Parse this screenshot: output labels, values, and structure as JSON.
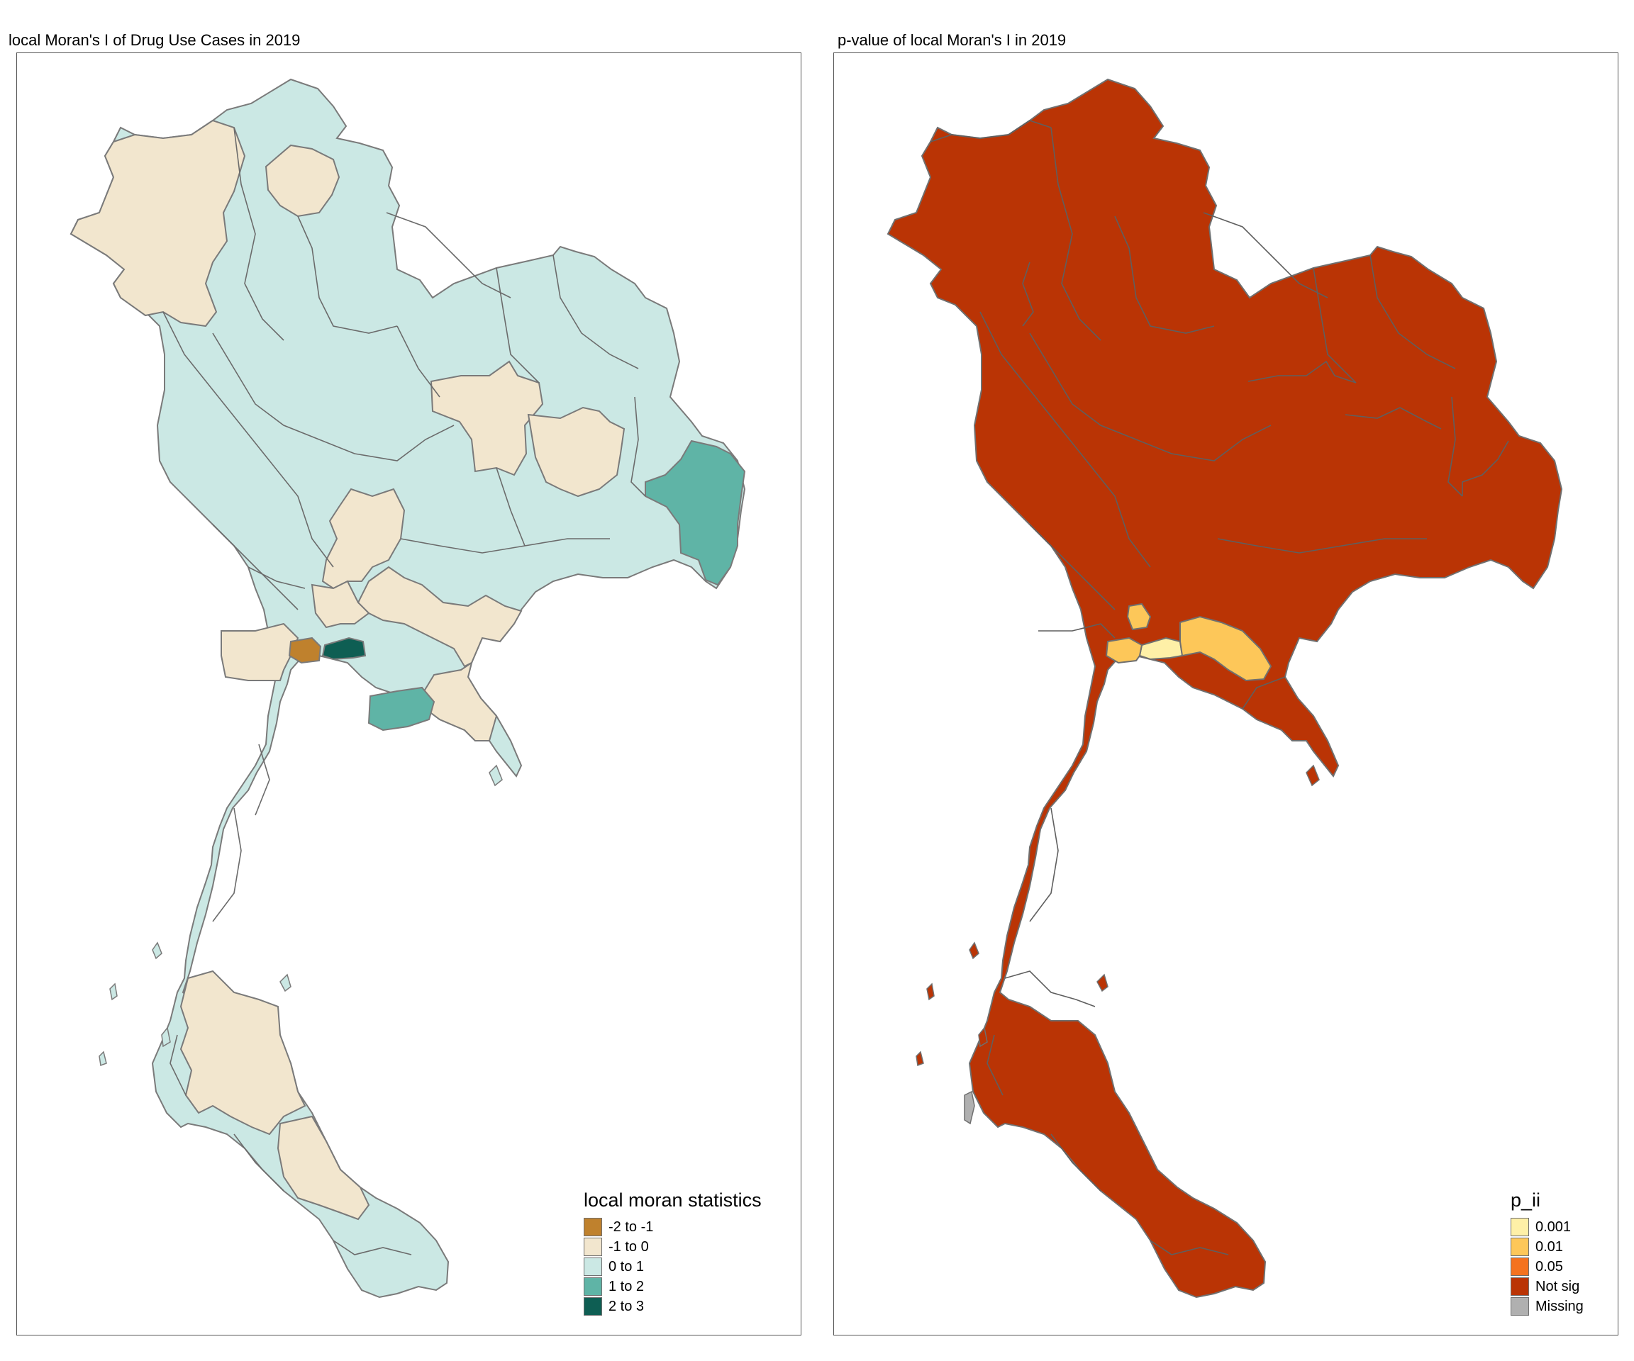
{
  "panels": [
    {
      "title": "local Moran's I of Drug Use Cases in 2019",
      "legend": {
        "title": "local moran statistics",
        "items": [
          {
            "label": "-2 to -1",
            "color": "#BF812D"
          },
          {
            "label": "-1 to 0",
            "color": "#F2E6CE"
          },
          {
            "label": "0 to 1",
            "color": "#CBE8E4"
          },
          {
            "label": "1 to 2",
            "color": "#5FB4A6"
          },
          {
            "label": "2 to 3",
            "color": "#0E5E53"
          }
        ]
      }
    },
    {
      "title": "p-value of local Moran's I in 2019",
      "legend": {
        "title": "p_ii",
        "items": [
          {
            "label": "0.001",
            "color": "#FEF0A7"
          },
          {
            "label": "0.01",
            "color": "#FDC759"
          },
          {
            "label": "0.05",
            "color": "#F4721F"
          },
          {
            "label": "Not sig",
            "color": "#BA3405"
          },
          {
            "label": "Missing",
            "color": "#B0B0B0"
          }
        ]
      }
    }
  ]
}
